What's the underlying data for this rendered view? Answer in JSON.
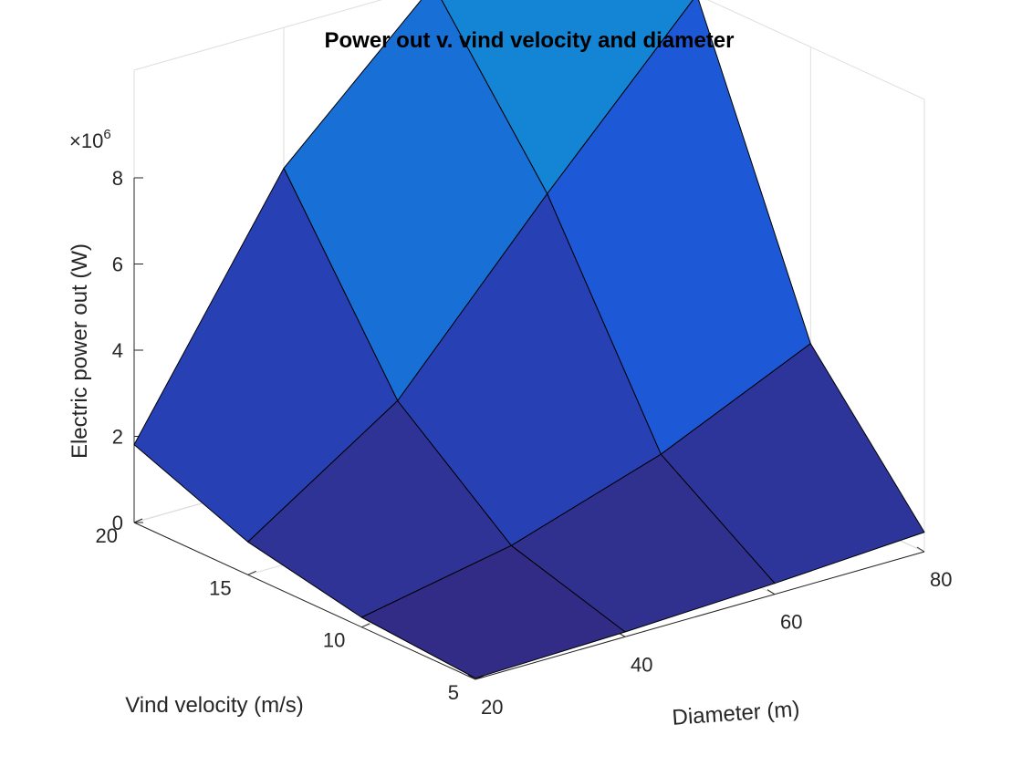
{
  "chart_data": {
    "type": "surface",
    "title": "Power out v. vind velocity and diameter",
    "xlabel": "Diameter (m)",
    "ylabel": "Vind velocity (m/s)",
    "zlabel": "Electric power out (W)",
    "z_exponent_label": "×10",
    "z_exponent_power": "6",
    "x": [
      20,
      40,
      60,
      80
    ],
    "y": [
      5,
      10,
      15,
      20
    ],
    "z": [
      [
        28000,
        113000,
        254000,
        452000
      ],
      [
        226000,
        904000,
        2035000,
        3617000
      ],
      [
        763000,
        3052000,
        6867000,
        12209000
      ],
      [
        1808000,
        7234000,
        16278000,
        28939000
      ]
    ],
    "z_display_max": 10500000,
    "z_scale": 1000000,
    "xticks": [
      20,
      40,
      60,
      80
    ],
    "yticks": [
      5,
      10,
      15,
      20
    ],
    "zticks": [
      0,
      2,
      4,
      6,
      8
    ],
    "xlim": [
      20,
      80
    ],
    "ylim": [
      5,
      20
    ],
    "zlim": [
      0,
      10500000
    ],
    "grid": true,
    "colors": {
      "low": "#332a81",
      "mid": "#1f4fd6",
      "high": "#1485d4",
      "edge": "#000000"
    }
  }
}
